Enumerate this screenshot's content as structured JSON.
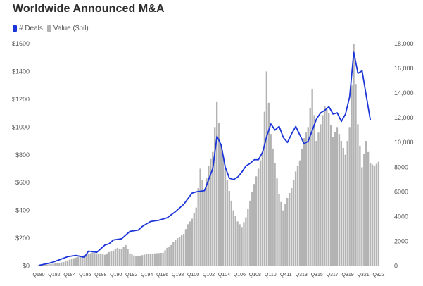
{
  "chart_data": {
    "type": "bar",
    "title": "Worldwide Announced M&A",
    "x_tick_labels": [
      "Q180",
      "Q182",
      "Q184",
      "Q186",
      "Q188",
      "Q190",
      "Q192",
      "Q194",
      "Q196",
      "Q198",
      "Q100",
      "Q102",
      "Q104",
      "Q106",
      "Q108",
      "Q110",
      "Q411",
      "Q313",
      "Q315",
      "Q317",
      "Q319",
      "Q321",
      "Q323"
    ],
    "left_axis": {
      "ticks": [
        "$0",
        "$200",
        "$400",
        "$600",
        "$800",
        "$1000",
        "$1200",
        "$1400",
        "$1600"
      ],
      "ylim": [
        0,
        1600
      ]
    },
    "right_axis": {
      "ticks": [
        "0",
        "2000",
        "4000",
        "6000",
        "8000",
        "10,000",
        "12,000",
        "14,000",
        "16,000",
        "18,000"
      ],
      "ylim": [
        0,
        18000
      ]
    },
    "series": [
      {
        "name": "Value ($bil)",
        "type": "bar",
        "axis": "left",
        "color": "#b3b3b3",
        "points": [
          [
            0,
            6
          ],
          [
            2,
            10
          ],
          [
            4,
            18
          ],
          [
            6,
            28
          ],
          [
            8,
            50
          ],
          [
            10,
            70
          ],
          [
            12,
            85
          ],
          [
            13,
            95
          ],
          [
            14,
            90
          ],
          [
            16,
            80
          ],
          [
            17,
            100
          ],
          [
            18,
            110
          ],
          [
            19,
            130
          ],
          [
            20,
            120
          ],
          [
            21,
            150
          ],
          [
            22,
            90
          ],
          [
            23,
            75
          ],
          [
            24,
            70
          ],
          [
            26,
            85
          ],
          [
            28,
            90
          ],
          [
            30,
            95
          ],
          [
            31,
            130
          ],
          [
            32,
            150
          ],
          [
            33,
            190
          ],
          [
            34,
            210
          ],
          [
            35,
            230
          ],
          [
            36,
            300
          ],
          [
            37,
            340
          ],
          [
            38,
            420
          ],
          [
            39,
            700
          ],
          [
            40,
            540
          ],
          [
            41,
            720
          ],
          [
            42,
            820
          ],
          [
            43,
            1180
          ],
          [
            44,
            880
          ],
          [
            45,
            700
          ],
          [
            46,
            540
          ],
          [
            47,
            400
          ],
          [
            48,
            320
          ],
          [
            49,
            280
          ],
          [
            50,
            350
          ],
          [
            51,
            470
          ],
          [
            52,
            590
          ],
          [
            53,
            700
          ],
          [
            54,
            820
          ],
          [
            55,
            1400
          ],
          [
            56,
            950
          ],
          [
            57,
            740
          ],
          [
            58,
            520
          ],
          [
            59,
            400
          ],
          [
            60,
            490
          ],
          [
            61,
            560
          ],
          [
            62,
            680
          ],
          [
            63,
            760
          ],
          [
            64,
            920
          ],
          [
            65,
            1000
          ],
          [
            66,
            1270
          ],
          [
            67,
            900
          ],
          [
            68,
            1020
          ],
          [
            69,
            1150
          ],
          [
            70,
            1100
          ],
          [
            71,
            930
          ],
          [
            72,
            1000
          ],
          [
            73,
            900
          ],
          [
            74,
            800
          ],
          [
            75,
            1000
          ],
          [
            76,
            1600
          ],
          [
            77,
            1020
          ],
          [
            78,
            710
          ],
          [
            79,
            900
          ],
          [
            80,
            740
          ],
          [
            81,
            720
          ],
          [
            82,
            750
          ]
        ]
      },
      {
        "name": "# Deals",
        "type": "line",
        "axis": "right",
        "color": "#1c35d8",
        "points": [
          [
            0,
            40
          ],
          [
            3,
            260
          ],
          [
            5,
            500
          ],
          [
            7,
            750
          ],
          [
            9,
            850
          ],
          [
            11,
            700
          ],
          [
            12,
            1200
          ],
          [
            14,
            1100
          ],
          [
            16,
            1700
          ],
          [
            17,
            1800
          ],
          [
            18,
            2100
          ],
          [
            20,
            2200
          ],
          [
            22,
            2800
          ],
          [
            24,
            2900
          ],
          [
            25,
            3200
          ],
          [
            27,
            3600
          ],
          [
            29,
            3700
          ],
          [
            31,
            3900
          ],
          [
            33,
            4400
          ],
          [
            35,
            5000
          ],
          [
            37,
            5900
          ],
          [
            38,
            6000
          ],
          [
            40,
            6100
          ],
          [
            41,
            7000
          ],
          [
            42,
            7900
          ],
          [
            43,
            10500
          ],
          [
            44,
            9800
          ],
          [
            45,
            8000
          ],
          [
            46,
            7100
          ],
          [
            47,
            7000
          ],
          [
            48,
            7200
          ],
          [
            49,
            7600
          ],
          [
            50,
            8100
          ],
          [
            51,
            8300
          ],
          [
            52,
            8600
          ],
          [
            53,
            8600
          ],
          [
            54,
            9200
          ],
          [
            55,
            10500
          ],
          [
            56,
            11500
          ],
          [
            57,
            11000
          ],
          [
            58,
            11300
          ],
          [
            59,
            10400
          ],
          [
            60,
            10000
          ],
          [
            61,
            10700
          ],
          [
            62,
            11300
          ],
          [
            63,
            10600
          ],
          [
            64,
            9900
          ],
          [
            65,
            10100
          ],
          [
            66,
            11000
          ],
          [
            67,
            11900
          ],
          [
            68,
            12400
          ],
          [
            69,
            12600
          ],
          [
            70,
            12900
          ],
          [
            71,
            12300
          ],
          [
            72,
            12400
          ],
          [
            73,
            11700
          ],
          [
            74,
            12300
          ],
          [
            75,
            13700
          ],
          [
            76,
            17300
          ],
          [
            77,
            15600
          ],
          [
            78,
            15800
          ],
          [
            79,
            13800
          ],
          [
            80,
            11800
          ]
        ]
      }
    ]
  }
}
